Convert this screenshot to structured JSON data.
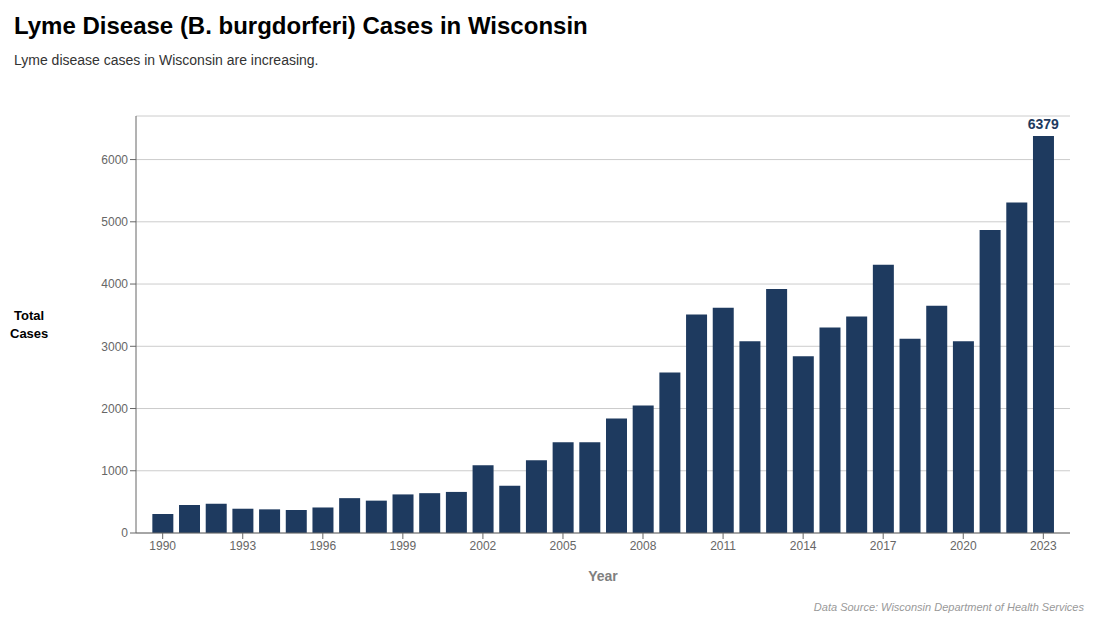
{
  "chart_data": {
    "type": "bar",
    "title": "Lyme Disease (B. burgdorferi) Cases in Wisconsin",
    "subtitle": "Lyme disease cases in Wisconsin are increasing.",
    "x_label": "Year",
    "y_label": "Total\nCases",
    "x": [
      1990,
      1991,
      1992,
      1993,
      1994,
      1995,
      1996,
      1997,
      1998,
      1999,
      2000,
      2001,
      2002,
      2003,
      2004,
      2005,
      2006,
      2007,
      2008,
      2009,
      2010,
      2011,
      2012,
      2013,
      2014,
      2015,
      2016,
      2017,
      2018,
      2019,
      2020,
      2021,
      2022,
      2023
    ],
    "values": [
      305,
      450,
      470,
      390,
      380,
      370,
      410,
      560,
      520,
      620,
      640,
      660,
      1090,
      760,
      1170,
      1460,
      1460,
      1840,
      2050,
      2580,
      3510,
      3620,
      3080,
      3920,
      2840,
      3300,
      3480,
      4310,
      3120,
      3650,
      3080,
      4870,
      5310,
      6379
    ],
    "color": "#1e3a5f",
    "xlim": [
      1989,
      2024
    ],
    "xticks": [
      1990,
      1993,
      1996,
      1999,
      2002,
      2005,
      2008,
      2011,
      2014,
      2017,
      2020,
      2023
    ],
    "ylim": [
      0,
      6700
    ],
    "yticks": [
      0,
      1000,
      2000,
      3000,
      4000,
      5000,
      6000
    ],
    "grid": true,
    "annotations": [
      {
        "text": "6379",
        "x": 2023,
        "y": 6379,
        "color": "#1e3a5f"
      },
      {
        "text": "Data Source: Wisconsin Department of Health Services"
      }
    ]
  }
}
